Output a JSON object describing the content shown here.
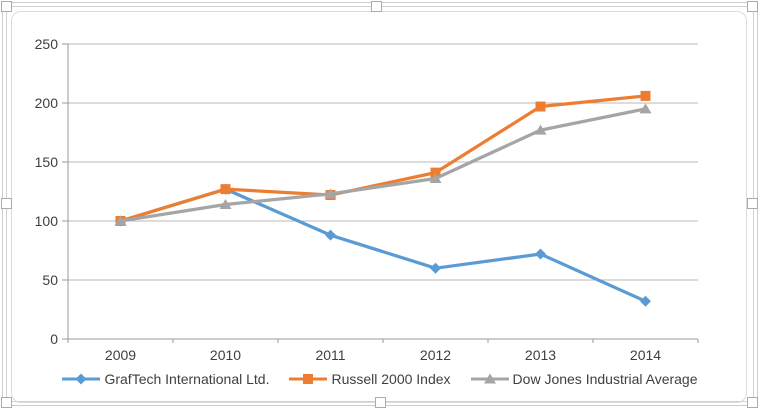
{
  "chart_data": {
    "type": "line",
    "categories": [
      "2009",
      "2010",
      "2011",
      "2012",
      "2013",
      "2014"
    ],
    "series": [
      {
        "name": "GrafTech International Ltd.",
        "marker": "diamond",
        "color": "#5B9BD5",
        "values": [
          100,
          127,
          88,
          60,
          72,
          32
        ]
      },
      {
        "name": "Russell 2000 Index",
        "marker": "square",
        "color": "#ED7D31",
        "values": [
          100,
          127,
          122,
          141,
          197,
          206
        ]
      },
      {
        "name": "Dow Jones Industrial Average",
        "marker": "triangle",
        "color": "#A5A5A5",
        "values": [
          100,
          114,
          123,
          136,
          177,
          195
        ]
      }
    ],
    "title": "",
    "xlabel": "",
    "ylabel": "",
    "yticks": [
      0,
      50,
      100,
      150,
      200,
      250
    ],
    "ylim": [
      0,
      250
    ],
    "grid": true,
    "legend_position": "bottom"
  },
  "style": {
    "gridline_color": "#b8b8b8",
    "axis_color": "#9a9a9a",
    "tick_label_color": "#3f3f3f",
    "frame_color": "#d2d2d2",
    "background": "#ffffff"
  }
}
